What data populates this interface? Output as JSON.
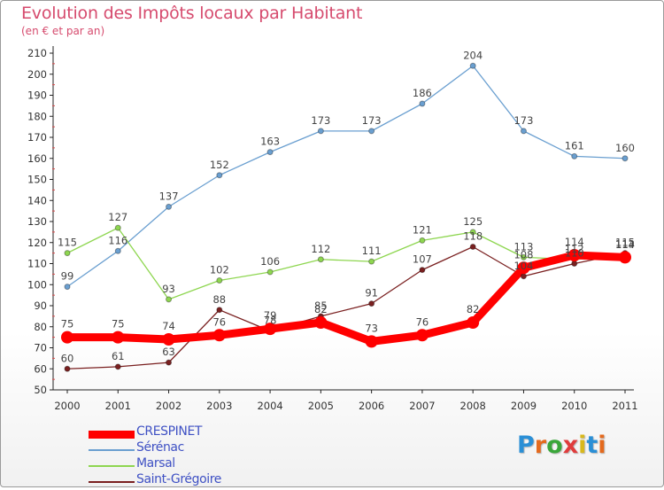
{
  "header": {
    "title": "Evolution des Impôts locaux par Habitant",
    "subtitle": "(en € et par an)"
  },
  "brand": {
    "letters": [
      "P",
      "r",
      "o",
      "x",
      "i",
      "t",
      "i"
    ],
    "colors": [
      "#2a8fd6",
      "#e46a1e",
      "#3aa63a",
      "#e03c3c",
      "#d8b81c",
      "#2a8fd6",
      "#e46a1e"
    ]
  },
  "chart_data": {
    "type": "line",
    "x": [
      "2000",
      "2001",
      "2002",
      "2003",
      "2004",
      "2005",
      "2006",
      "2007",
      "2008",
      "2009",
      "2010",
      "2011"
    ],
    "ylim": [
      50,
      210
    ],
    "yticks": [
      50,
      60,
      70,
      80,
      90,
      100,
      110,
      120,
      130,
      140,
      150,
      160,
      170,
      180,
      190,
      200,
      210
    ],
    "grid": false,
    "legend_position": "bottom-left",
    "series": [
      {
        "name": "CRESPINET",
        "color": "#ff0000",
        "values": [
          75,
          75,
          74,
          76,
          79,
          82,
          73,
          76,
          82,
          108,
          114,
          113
        ],
        "labels": [
          "75",
          "75",
          "74",
          "76",
          "79",
          "82",
          "73",
          "76",
          "82",
          "108",
          "114",
          "113"
        ]
      },
      {
        "name": "Sérénac",
        "color": "#6a9fd0",
        "values": [
          99,
          116,
          137,
          152,
          163,
          173,
          173,
          186,
          204,
          173,
          161,
          160
        ],
        "labels": [
          "99",
          "116",
          "137",
          "152",
          "163",
          "173",
          "173",
          "186",
          "204",
          "173",
          "161",
          "160"
        ]
      },
      {
        "name": "Marsal",
        "color": "#8ed650",
        "values": [
          115,
          127,
          93,
          102,
          106,
          112,
          111,
          121,
          125,
          113,
          112,
          114
        ],
        "labels": [
          "115",
          "127",
          "93",
          "102",
          "106",
          "112",
          "111",
          "121",
          "125",
          "113",
          "112",
          "114"
        ]
      },
      {
        "name": "Saint-Grégoire",
        "color": "#7a2020",
        "values": [
          60,
          61,
          63,
          88,
          78,
          85,
          91,
          107,
          118,
          104,
          110,
          115
        ],
        "labels": [
          "60",
          "61",
          "63",
          "88",
          "78",
          "85",
          "91",
          "107",
          "118",
          "104",
          "110",
          "115"
        ]
      }
    ]
  }
}
